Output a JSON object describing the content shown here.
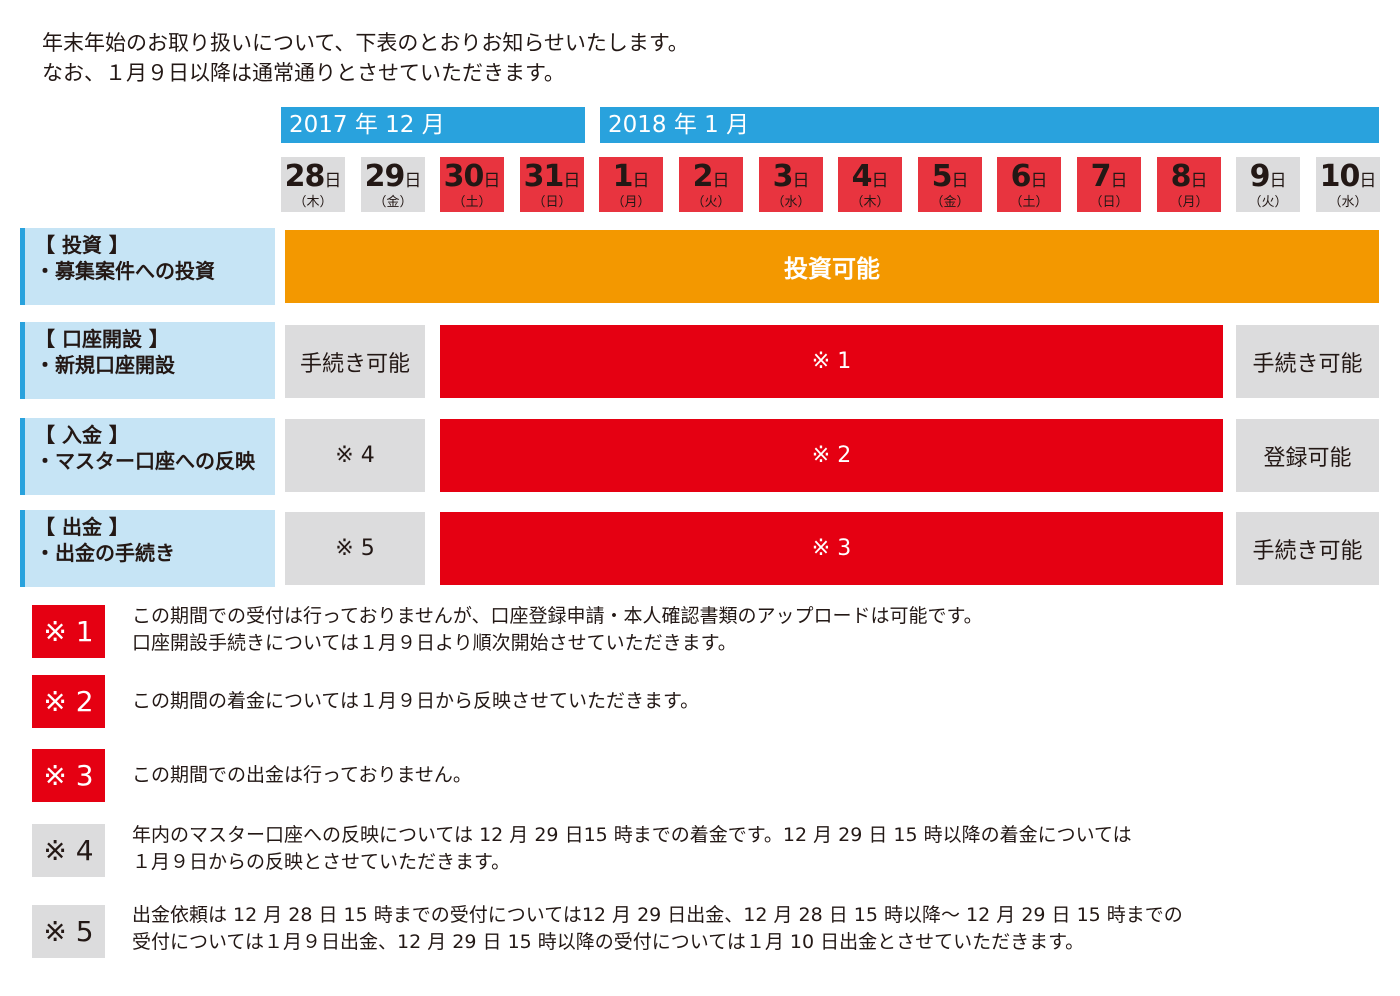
{
  "intro": {
    "line1": "年末年始のお取り扱いについて、下表のとおりお知らせいたします。",
    "line2": "なお、１月９日以降は通常通りとさせていただきます。"
  },
  "months": [
    "2017 年 12 月",
    "2018 年 1 月"
  ],
  "days": [
    {
      "day": "28",
      "unit": "日",
      "weekday": "（木）",
      "status": "gray"
    },
    {
      "day": "29",
      "unit": "日",
      "weekday": "（金）",
      "status": "gray"
    },
    {
      "day": "30",
      "unit": "日",
      "weekday": "（土）",
      "status": "red"
    },
    {
      "day": "31",
      "unit": "日",
      "weekday": "（日）",
      "status": "red"
    },
    {
      "day": "1",
      "unit": "日",
      "weekday": "（月）",
      "status": "red"
    },
    {
      "day": "2",
      "unit": "日",
      "weekday": "（火）",
      "status": "red"
    },
    {
      "day": "3",
      "unit": "日",
      "weekday": "（水）",
      "status": "red"
    },
    {
      "day": "4",
      "unit": "日",
      "weekday": "（木）",
      "status": "red"
    },
    {
      "day": "5",
      "unit": "日",
      "weekday": "（金）",
      "status": "red"
    },
    {
      "day": "6",
      "unit": "日",
      "weekday": "（土）",
      "status": "red"
    },
    {
      "day": "7",
      "unit": "日",
      "weekday": "（日）",
      "status": "red"
    },
    {
      "day": "8",
      "unit": "日",
      "weekday": "（月）",
      "status": "red"
    },
    {
      "day": "9",
      "unit": "日",
      "weekday": "（火）",
      "status": "gray"
    },
    {
      "day": "10",
      "unit": "日",
      "weekday": "（水）",
      "status": "gray"
    }
  ],
  "rows": [
    {
      "title": "【 投資 】",
      "sub": "・募集案件への投資",
      "cells": [
        "投資可能"
      ]
    },
    {
      "title": "【 口座開設 】",
      "sub": "・新規口座開設",
      "cells": [
        "手続き可能",
        "※ 1",
        "手続き可能"
      ]
    },
    {
      "title": "【 入金 】",
      "sub": "・マスター口座への反映",
      "cells": [
        "※ 4",
        "※ 2",
        "登録可能"
      ]
    },
    {
      "title": "【 出金 】",
      "sub": "・出金の手続き",
      "cells": [
        "※ 5",
        "※ 3",
        "手続き可能"
      ]
    }
  ],
  "notes": [
    {
      "label": "※ 1",
      "color": "red",
      "lines": [
        "この期間での受付は行っておりませんが、口座登録申請・本人確認書類のアップロードは可能です。",
        "口座開設手続きについては１月９日より順次開始させていただきます。"
      ]
    },
    {
      "label": "※ 2",
      "color": "red",
      "lines": [
        "この期間の着金については１月９日から反映させていただきます。"
      ]
    },
    {
      "label": "※ 3",
      "color": "red",
      "lines": [
        "この期間での出金は行っておりません。"
      ]
    },
    {
      "label": "※ 4",
      "color": "gray",
      "lines": [
        "年内のマスター口座への反映については 12 月 29 日15 時までの着金です。12 月 29 日 15 時以降の着金については",
        "１月９日からの反映とさせていただきます。"
      ]
    },
    {
      "label": "※ 5",
      "color": "gray",
      "lines": [
        "出金依頼は 12 月 28 日 15 時までの受付については12 月 29 日出金、12 月 28 日 15 時以降〜 12 月 29 日 15 時までの",
        "受付については１月９日出金、12 月 29 日 15 時以降の受付については１月 10 日出金とさせていただきます。"
      ]
    }
  ],
  "colors": {
    "blue": "#29a2dd",
    "light_blue": "#c6e4f5",
    "red": "#e50012",
    "day_red": "#e8343f",
    "gray": "#dcdcdd",
    "orange": "#f39800"
  }
}
